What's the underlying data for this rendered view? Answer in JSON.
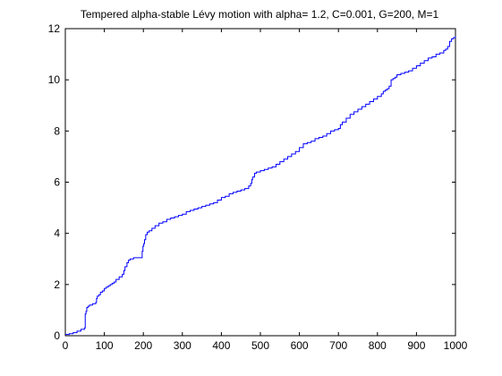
{
  "chart_data": {
    "type": "line",
    "title": "Tempered alpha-stable Lévy motion with alpha= 1.2, C=0.001, G=200, M=1",
    "xlabel": "",
    "ylabel": "",
    "xlim": [
      0,
      1000
    ],
    "ylim": [
      0,
      12
    ],
    "xticks": [
      0,
      100,
      200,
      300,
      400,
      500,
      600,
      700,
      800,
      900,
      1000
    ],
    "yticks": [
      0,
      2,
      4,
      6,
      8,
      10,
      12
    ],
    "grid": false,
    "legend": "none",
    "series": [
      {
        "color": "#0000ff",
        "x": [
          0,
          10,
          20,
          30,
          40,
          49,
          51,
          53,
          55,
          58,
          62,
          66,
          70,
          74,
          78,
          80,
          82,
          86,
          90,
          95,
          100,
          105,
          110,
          115,
          120,
          125,
          130,
          138,
          146,
          150,
          153,
          158,
          162,
          164,
          166,
          170,
          175,
          180,
          185,
          190,
          194,
          197,
          199,
          201,
          203,
          206,
          210,
          215,
          222,
          230,
          240,
          250,
          260,
          270,
          280,
          290,
          300,
          310,
          320,
          330,
          340,
          350,
          360,
          370,
          380,
          390,
          400,
          410,
          420,
          430,
          440,
          450,
          460,
          470,
          475,
          478,
          480,
          485,
          490,
          500,
          510,
          520,
          530,
          540,
          550,
          560,
          570,
          580,
          590,
          600,
          610,
          620,
          630,
          640,
          650,
          660,
          670,
          680,
          690,
          700,
          705,
          710,
          720,
          730,
          740,
          750,
          760,
          770,
          780,
          790,
          800,
          810,
          815,
          820,
          825,
          830,
          835,
          840,
          845,
          850,
          860,
          870,
          880,
          890,
          900,
          910,
          920,
          930,
          940,
          950,
          960,
          970,
          975,
          980,
          985,
          990,
          995,
          1000
        ],
        "y": [
          0.05,
          0.08,
          0.12,
          0.18,
          0.25,
          0.3,
          0.85,
          0.95,
          1.1,
          1.15,
          1.2,
          1.2,
          1.25,
          1.25,
          1.3,
          1.45,
          1.55,
          1.6,
          1.7,
          1.75,
          1.85,
          1.9,
          1.95,
          2.0,
          2.05,
          2.1,
          2.2,
          2.3,
          2.4,
          2.55,
          2.7,
          2.85,
          2.95,
          2.95,
          3.0,
          3.0,
          3.05,
          3.05,
          3.05,
          3.05,
          3.05,
          3.3,
          3.5,
          3.6,
          3.75,
          3.95,
          4.05,
          4.1,
          4.2,
          4.3,
          4.4,
          4.45,
          4.55,
          4.6,
          4.65,
          4.7,
          4.75,
          4.85,
          4.9,
          4.95,
          5.0,
          5.05,
          5.1,
          5.15,
          5.2,
          5.3,
          5.4,
          5.45,
          5.55,
          5.6,
          5.65,
          5.7,
          5.75,
          5.85,
          5.95,
          6.1,
          6.2,
          6.35,
          6.4,
          6.45,
          6.5,
          6.55,
          6.6,
          6.7,
          6.8,
          6.9,
          7.0,
          7.1,
          7.2,
          7.35,
          7.5,
          7.55,
          7.6,
          7.7,
          7.75,
          7.8,
          7.9,
          8.0,
          8.05,
          8.1,
          8.25,
          8.35,
          8.5,
          8.65,
          8.75,
          8.85,
          8.95,
          9.05,
          9.15,
          9.25,
          9.35,
          9.45,
          9.55,
          9.6,
          9.65,
          9.75,
          10.0,
          10.05,
          10.1,
          10.2,
          10.25,
          10.3,
          10.35,
          10.45,
          10.55,
          10.65,
          10.75,
          10.85,
          10.9,
          11.0,
          11.05,
          11.15,
          11.2,
          11.3,
          11.5,
          11.6,
          11.65,
          11.7
        ]
      }
    ]
  }
}
